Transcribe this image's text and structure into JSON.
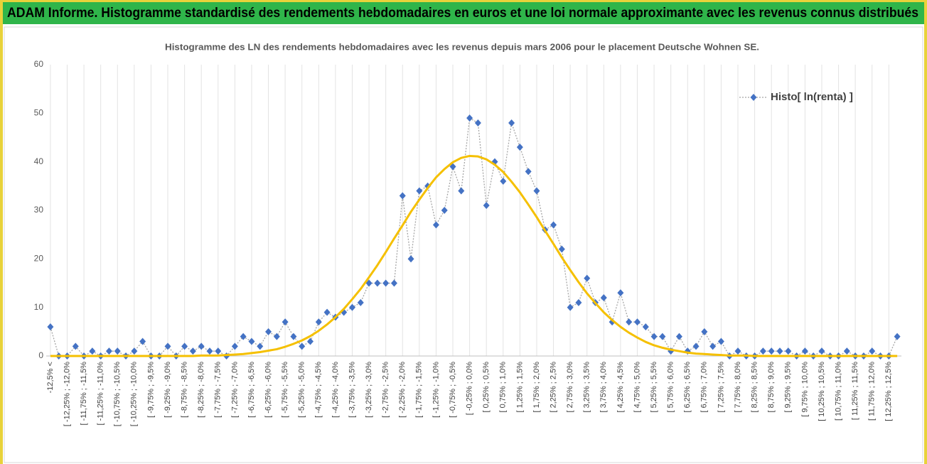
{
  "header": {
    "title": "ADAM Informe. Histogramme standardisé des rendements hebdomadaires en euros et une loi normale approximante avec les revenus connus distribués"
  },
  "chart_data": {
    "type": "line",
    "title": "Histogramme des LN des rendements hebdomadaires avec les revenus depuis mars 2006 pour le placement Deutsche  Wohnen SE.",
    "categories": [
      "-12,5% <",
      null,
      "[ -12,25% ; -12,0%",
      null,
      "[ -11,75% ; -11,5%",
      null,
      "[ -11,25% ; -11,0%",
      null,
      "[ -10,75% ; -10,5%",
      null,
      "[ -10,25% ; -10,0%",
      null,
      "[ -9,75% ; -9,5%",
      null,
      "[ -9,25% ; -9,0%",
      null,
      "[ -8,75% ; -8,5%",
      null,
      "[ -8,25% ; -8,0%",
      null,
      "[ -7,75% ; -7,5%",
      null,
      "[ -7,25% ; -7,0%",
      null,
      "[ -6,75% ; -6,5%",
      null,
      "[ -6,25% ; -6,0%",
      null,
      "[ -5,75% ; -5,5%",
      null,
      "[ -5,25% ; -5,0%",
      null,
      "[ -4,75% ; -4,5%",
      null,
      "[ -4,25% ; -4,0%",
      null,
      "[ -3,75% ; -3,5%",
      null,
      "[ -3,25% ; -3,0%",
      null,
      "[ -2,75% ; -2,5%",
      null,
      "[ -2,25% ; -2,0%",
      null,
      "[ -1,75% ; -1,5%",
      null,
      "[ -1,25% ; -1,0%",
      null,
      "[ -0,75% ; -0,5%",
      null,
      "[ -0,25% ; 0,0%",
      null,
      "[ 0,25% ; 0,5%",
      null,
      "[ 0,75% ; 1,0%",
      null,
      "[ 1,25% ; 1,5%",
      null,
      "[ 1,75% ; 2,0%",
      null,
      "[ 2,25% ; 2,5%",
      null,
      "[ 2,75% ; 3,0%",
      null,
      "[ 3,25% ; 3,5%",
      null,
      "[ 3,75% ; 4,0%",
      null,
      "[ 4,25% ; 4,5%",
      null,
      "[ 4,75% ; 5,0%",
      null,
      "[ 5,25% ; 5,5%",
      null,
      "[ 5,75% ; 6,0%",
      null,
      "[ 6,25% ; 6,5%",
      null,
      "[ 6,75% ; 7,0%",
      null,
      "[ 7,25% ; 7,5%",
      null,
      "[ 7,75% ; 8,0%",
      null,
      "[ 8,25% ; 8,5%",
      null,
      "[ 8,75% ; 9,0%",
      null,
      "[ 9,25% ; 9,5%",
      null,
      "[ 9,75% ; 10,0%",
      null,
      "[ 10,25% ; 10,5%",
      null,
      "[ 10,75% ; 11,0%",
      null,
      "[ 11,25% ; 11,5%",
      null,
      "[ 11,75% ; 12,0%",
      null,
      "[ 12,25% ; 12,5%",
      null
    ],
    "series": [
      {
        "name": "Histo[ ln(renta) ]",
        "color": "#4472c4",
        "line_color": "#a5a5a5",
        "dash": "dotted",
        "marker": "diamond",
        "values": [
          6,
          0,
          0,
          2,
          0,
          1,
          0,
          1,
          1,
          0,
          1,
          3,
          0,
          0,
          2,
          0,
          2,
          1,
          2,
          1,
          1,
          0,
          2,
          4,
          3,
          2,
          5,
          4,
          7,
          4,
          2,
          3,
          7,
          9,
          8,
          9,
          10,
          11,
          15,
          15,
          15,
          15,
          33,
          20,
          34,
          35,
          27,
          30,
          39,
          34,
          49,
          48,
          31,
          40,
          36,
          48,
          43,
          38,
          34,
          26,
          27,
          22,
          10,
          11,
          16,
          11,
          12,
          7,
          13,
          7,
          7,
          6,
          4,
          4,
          1,
          4,
          1,
          2,
          5,
          2,
          3,
          0,
          1,
          0,
          0,
          1,
          1,
          1,
          1,
          0,
          1,
          0,
          1,
          0,
          0,
          1,
          0,
          0,
          1,
          0,
          0,
          4
        ]
      },
      {
        "color": "#f5c000",
        "dash": "solid",
        "marker": "none",
        "values": [
          0,
          0,
          0,
          0,
          0,
          0,
          0,
          0,
          0,
          0,
          0,
          0,
          0,
          0,
          0,
          0,
          0,
          0,
          0.1,
          0.1,
          0.1,
          0.2,
          0.3,
          0.4,
          0.6,
          0.8,
          1.1,
          1.4,
          1.9,
          2.5,
          3.2,
          4.1,
          5.2,
          6.5,
          8.0,
          9.7,
          11.7,
          13.8,
          16.2,
          18.7,
          21.4,
          24.2,
          26.9,
          29.7,
          32.2,
          34.6,
          36.8,
          38.5,
          39.9,
          40.8,
          41.2,
          41.1,
          40.5,
          39.4,
          37.9,
          35.9,
          33.7,
          31.2,
          28.6,
          25.8,
          23.1,
          20.3,
          17.7,
          15.2,
          12.9,
          10.9,
          9.0,
          7.4,
          6.0,
          4.8,
          3.8,
          2.9,
          2.2,
          1.7,
          1.3,
          1.0,
          0.7,
          0.5,
          0.4,
          0.3,
          0.2,
          0.1,
          0.1,
          0.1,
          0,
          0,
          0,
          0,
          0,
          0,
          0,
          0,
          0,
          0,
          0,
          0,
          0,
          0,
          0,
          0,
          0,
          0
        ]
      }
    ],
    "ylim": [
      0,
      60
    ],
    "yticks": [
      0,
      10,
      20,
      30,
      40,
      50,
      60
    ],
    "grid": "x",
    "legend": "top-right"
  }
}
